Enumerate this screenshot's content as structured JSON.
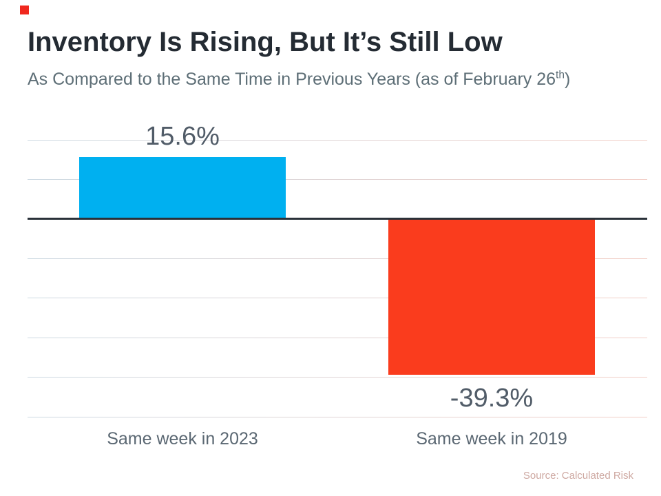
{
  "header": {
    "title": "Inventory Is Rising, But It’s Still Low",
    "subtitle_prefix": "As Compared to the Same Time in Previous Years (as of February 26",
    "subtitle_superscript": "th",
    "subtitle_suffix": ")"
  },
  "footer": {
    "source": "Source: Calculated Risk"
  },
  "theme": {
    "brand_square_color": "#f0281e",
    "title_color": "#242b33",
    "subtitle_color": "#5d6e76",
    "value_label_color": "#515c68",
    "category_label_color": "#5a6772",
    "axis_color": "#2a3139",
    "gridline_color_left": "#ccd9e2",
    "gridline_color_right": "#f2cdc5",
    "source_color": "#cda7a0"
  },
  "chart_data": {
    "type": "bar",
    "title": "Inventory Is Rising, But It’s Still Low",
    "subtitle": "As Compared to the Same Time in Previous Years (as of February 26th)",
    "categories": [
      "Same week in 2023",
      "Same week in 2019"
    ],
    "values": [
      15.6,
      -39.3
    ],
    "value_labels": [
      "15.6%",
      "-39.3%"
    ],
    "bar_colors": [
      "#00b0f0",
      "#fa3c1d"
    ],
    "xlabel": "",
    "ylabel": "",
    "ylim": [
      -50,
      20
    ],
    "gridline_step": 10,
    "grid": true,
    "baseline": 0,
    "legend": "none",
    "source": "Source: Calculated Risk"
  }
}
